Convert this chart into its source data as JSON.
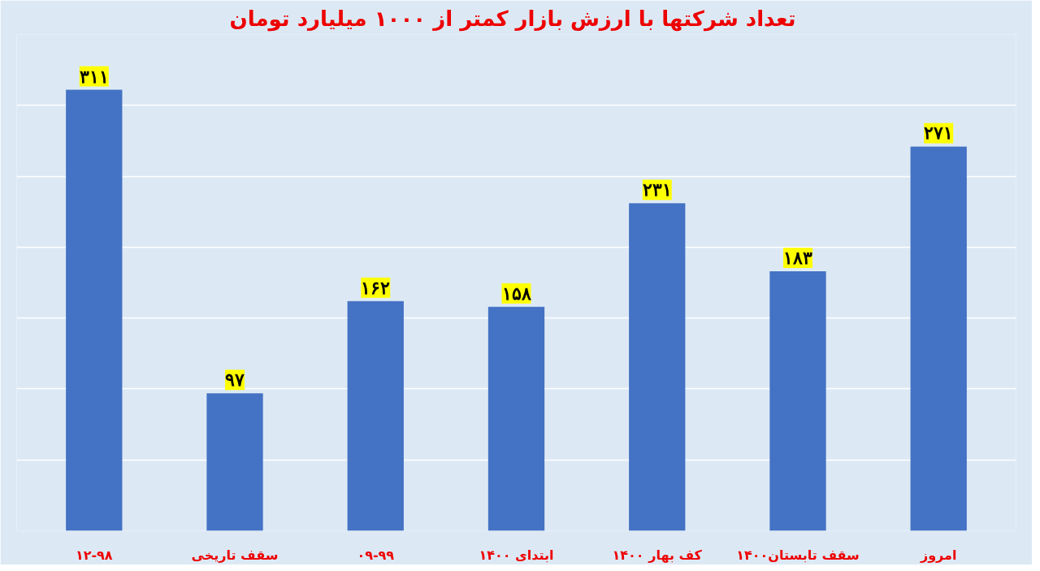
{
  "chart_data": {
    "type": "bar",
    "title": "تعداد شرکتها با ارزش بازار  کمتر از ۱۰۰۰ میلیارد تومان",
    "categories": [
      "۱۲-۹۸",
      "سقف تاریخی",
      "۰۹-۹۹",
      "ابتدای ۱۴۰۰",
      "کف بهار ۱۴۰۰",
      "سقف تابستان۱۴۰۰",
      "امروز"
    ],
    "values": [
      311,
      97,
      162,
      158,
      231,
      183,
      271
    ],
    "value_labels": [
      "۳۱۱",
      "۹۷",
      "۱۶۲",
      "۱۵۸",
      "۲۳۱",
      "۱۸۳",
      "۲۷۱"
    ],
    "color": "#4472c4",
    "ylim": [
      0,
      350
    ],
    "yticks": [
      {
        "value": 0,
        "label": null
      },
      {
        "value": 50,
        "label": null
      },
      {
        "value": 100,
        "label": null
      },
      {
        "value": 150,
        "label": null
      },
      {
        "value": 200,
        "label": null
      },
      {
        "value": 250,
        "label": null
      },
      {
        "value": 300,
        "label": null
      },
      {
        "value": 350,
        "label": null
      }
    ],
    "grid": "y",
    "tick_labels": "x"
  }
}
